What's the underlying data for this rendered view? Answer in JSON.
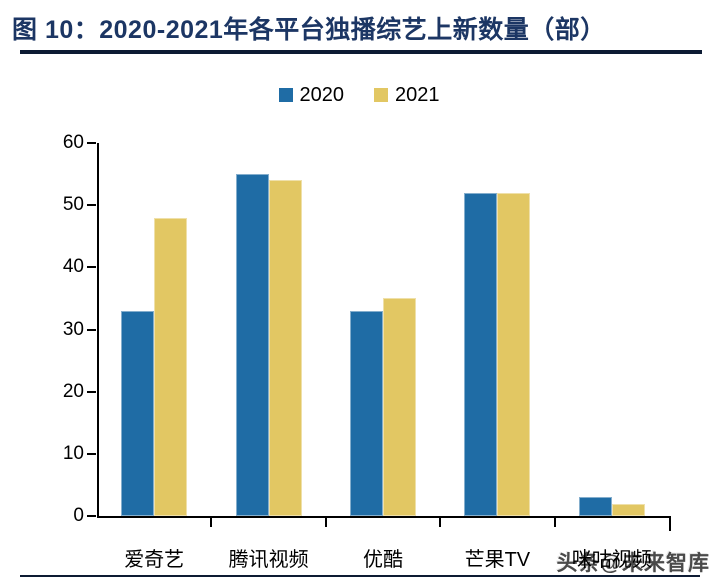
{
  "figure": {
    "title": "图 10：2020-2021年各平台独播综艺上新数量（部）",
    "watermark": "头条@未来智库"
  },
  "chart_data": {
    "type": "bar",
    "title": "图 10：2020-2021年各平台独播综艺上新数量（部）",
    "categories": [
      "爱奇艺",
      "腾讯视频",
      "优酷",
      "芒果TV",
      "咪咕视频"
    ],
    "series": [
      {
        "name": "2020",
        "color": "#1F6CA5",
        "values": [
          33,
          55,
          33,
          52,
          3
        ]
      },
      {
        "name": "2021",
        "color": "#E2C763",
        "values": [
          48,
          54,
          35,
          52,
          2
        ]
      }
    ],
    "xlabel": "",
    "ylabel": "",
    "ylim": [
      0,
      60
    ],
    "yticks": [
      0,
      10,
      20,
      30,
      40,
      50,
      60
    ],
    "grid": false,
    "legend_position": "top-center"
  },
  "colors": {
    "title_text": "#1C3664",
    "rule": "#0D1B33",
    "axis": "#000000",
    "bar_2020": "#1F6CA5",
    "bar_2021": "#E2C763",
    "watermark": "#4a4a4a"
  }
}
